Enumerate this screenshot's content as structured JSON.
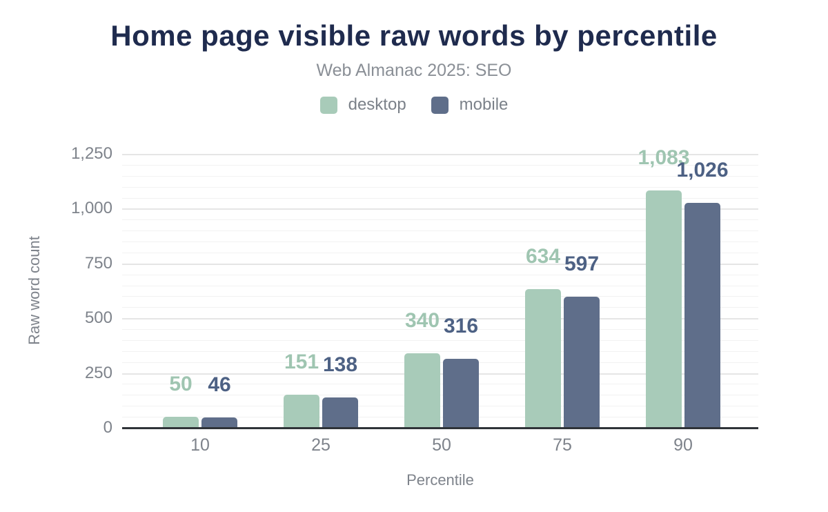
{
  "chart_data": {
    "type": "bar",
    "title": "Home page visible raw words by percentile",
    "subtitle": "Web Almanac 2025: SEO",
    "xlabel": "Percentile",
    "ylabel": "Raw word count",
    "categories": [
      "10",
      "25",
      "50",
      "75",
      "90"
    ],
    "series": [
      {
        "name": "desktop",
        "color": "#a8cbb9",
        "label_color": "#9fc5b1",
        "values": [
          50,
          151,
          340,
          634,
          1083
        ],
        "value_labels": [
          "50",
          "151",
          "340",
          "634",
          "1,083"
        ]
      },
      {
        "name": "mobile",
        "color": "#5f6e8a",
        "label_color": "#4d6184",
        "values": [
          46,
          138,
          316,
          597,
          1026
        ],
        "value_labels": [
          "46",
          "138",
          "316",
          "597",
          "1,026"
        ]
      }
    ],
    "ylim": [
      0,
      1250
    ],
    "yticks": {
      "values": [
        0,
        250,
        500,
        750,
        1000,
        1250
      ],
      "labels": [
        "0",
        "250",
        "500",
        "750",
        "1,000",
        "1,250"
      ]
    },
    "minor_tick_step": 50,
    "grid": "horizontal major+minor",
    "legend_position": "top",
    "colors": {
      "title": "#1f2b4e",
      "subtitle": "#8a8f96",
      "axis_text": "#7e838b",
      "major_grid": "#e5e5e5",
      "minor_grid": "#f2f2f2",
      "axis_line": "#2f3338"
    }
  }
}
